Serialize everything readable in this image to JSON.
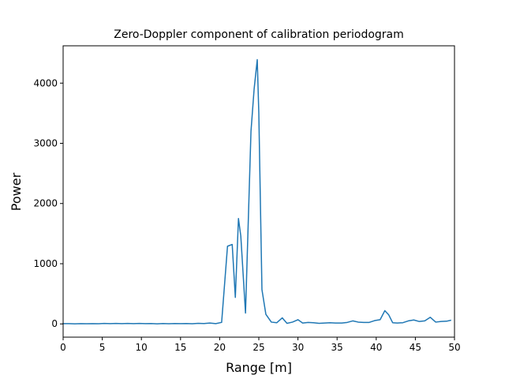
{
  "chart_data": {
    "type": "line",
    "title": "Zero-Doppler component of calibration periodogram",
    "xlabel": "Range [m]",
    "ylabel": "Power",
    "xlim": [
      0,
      50
    ],
    "ylim": [
      -220,
      4620
    ],
    "xticks": [
      0,
      5,
      10,
      15,
      20,
      25,
      30,
      35,
      40,
      45,
      50
    ],
    "yticks": [
      0,
      1000,
      2000,
      3000,
      4000
    ],
    "grid": false,
    "series": [
      {
        "name": "zero-doppler",
        "color": "#1f77b4",
        "x": [
          0,
          0.75,
          1.5,
          2.25,
          3,
          3.75,
          4.5,
          5.25,
          6,
          6.75,
          7.5,
          8.25,
          9,
          9.75,
          10.5,
          11.25,
          12,
          12.75,
          13.5,
          14.25,
          15,
          15.75,
          16.5,
          17.25,
          18,
          18.75,
          19.5,
          20.25,
          21.0,
          21.6,
          22.0,
          22.4,
          22.7,
          23.3,
          24.0,
          24.4,
          24.8,
          25.0,
          25.4,
          25.9,
          26.6,
          27.3,
          28.0,
          28.6,
          29.3,
          30.0,
          30.6,
          31.3,
          32.0,
          32.7,
          33.4,
          34.1,
          34.8,
          35.6,
          36.3,
          37.0,
          37.7,
          38.4,
          39.1,
          39.8,
          40.5,
          41.1,
          41.6,
          42.1,
          42.7,
          43.4,
          44.1,
          44.8,
          45.5,
          46.2,
          46.9,
          47.6,
          48.3,
          49.0,
          49.5
        ],
        "y": [
          5,
          5,
          2,
          5,
          3,
          5,
          3,
          8,
          4,
          8,
          4,
          8,
          4,
          8,
          4,
          6,
          2,
          6,
          3,
          6,
          4,
          6,
          3,
          10,
          6,
          15,
          5,
          25,
          1290,
          1320,
          440,
          1750,
          1460,
          180,
          3200,
          3900,
          4390,
          3500,
          570,
          160,
          30,
          20,
          100,
          10,
          30,
          70,
          15,
          25,
          20,
          10,
          15,
          20,
          15,
          15,
          25,
          50,
          30,
          25,
          25,
          55,
          70,
          220,
          150,
          20,
          15,
          20,
          50,
          65,
          40,
          50,
          110,
          30,
          40,
          45,
          60
        ]
      }
    ]
  }
}
